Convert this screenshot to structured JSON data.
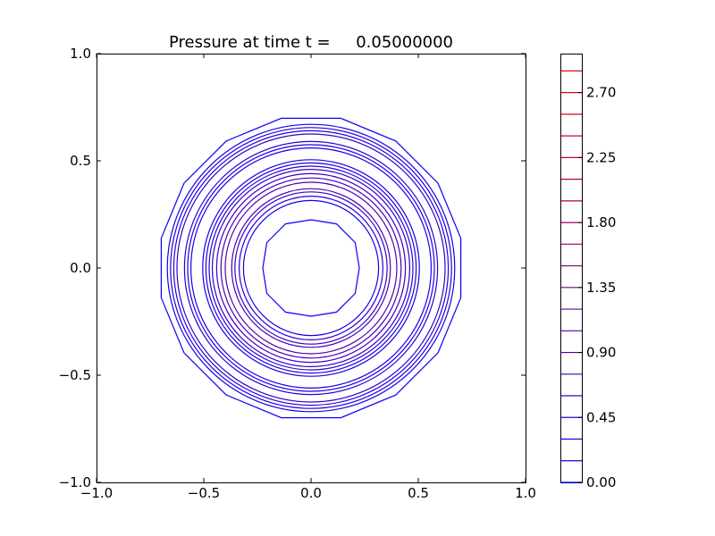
{
  "chart_data": {
    "type": "contour",
    "title": "Pressure at time t =     0.05000000",
    "xlabel": "",
    "ylabel": "",
    "xlim": [
      -1.0,
      1.0
    ],
    "ylim": [
      -1.0,
      1.0
    ],
    "x_ticks": [
      "−1.0",
      "−0.5",
      "0.0",
      "0.5",
      "1.0"
    ],
    "y_ticks": [
      "−1.0",
      "−0.5",
      "0.0",
      "0.5",
      "1.0"
    ],
    "grid": false,
    "contour_levels": [
      0.0,
      0.15,
      0.3,
      0.45,
      0.6,
      0.75,
      0.9,
      1.05,
      1.2,
      1.35,
      1.5,
      1.65,
      1.8,
      1.95,
      2.1,
      2.25,
      2.4,
      2.55,
      2.7,
      2.85
    ],
    "colorbar": {
      "min": 0.0,
      "max": 2.97,
      "tick_values": [
        0.0,
        0.45,
        0.9,
        1.35,
        1.8,
        2.25,
        2.7
      ],
      "tick_labels": [
        "0.00",
        "0.45",
        "0.90",
        "1.35",
        "1.80",
        "2.25",
        "2.70"
      ],
      "color_low": "#0000ff",
      "color_high": "#ff0000"
    },
    "contours": [
      {
        "level": 0.15,
        "radius": 0.72,
        "shape": "octagon",
        "color": "#0a00f5"
      },
      {
        "level": 0.3,
        "radius": 0.67,
        "shape": "circle",
        "color": "#1400eb"
      },
      {
        "level": 0.45,
        "radius": 0.655,
        "shape": "circle",
        "color": "#1e00e1"
      },
      {
        "level": 0.6,
        "radius": 0.64,
        "shape": "circle",
        "color": "#2800d7"
      },
      {
        "level": 0.75,
        "radius": 0.625,
        "shape": "circle",
        "color": "#3300cc"
      },
      {
        "level": 0.6,
        "radius": 0.59,
        "shape": "circle",
        "color": "#2800d7"
      },
      {
        "level": 0.45,
        "radius": 0.575,
        "shape": "circle",
        "color": "#1e00e1"
      },
      {
        "level": 0.3,
        "radius": 0.56,
        "shape": "circle",
        "color": "#1400eb"
      },
      {
        "level": 0.3,
        "radius": 0.505,
        "shape": "circle",
        "color": "#1400eb"
      },
      {
        "level": 0.45,
        "radius": 0.49,
        "shape": "circle",
        "color": "#1e00e1"
      },
      {
        "level": 0.6,
        "radius": 0.475,
        "shape": "circle",
        "color": "#2800d7"
      },
      {
        "level": 0.75,
        "radius": 0.46,
        "shape": "circle",
        "color": "#3300cc"
      },
      {
        "level": 0.9,
        "radius": 0.44,
        "shape": "circle",
        "color": "#3d00c2"
      },
      {
        "level": 1.05,
        "radius": 0.42,
        "shape": "circle",
        "color": "#4700b8"
      },
      {
        "level": 1.2,
        "radius": 0.4,
        "shape": "circle",
        "color": "#5100ae"
      },
      {
        "level": 1.05,
        "radius": 0.37,
        "shape": "circle",
        "color": "#4700b8"
      },
      {
        "level": 0.9,
        "radius": 0.355,
        "shape": "circle",
        "color": "#3d00c2"
      },
      {
        "level": 0.6,
        "radius": 0.335,
        "shape": "circle",
        "color": "#2800d7"
      },
      {
        "level": 0.3,
        "radius": 0.315,
        "shape": "circle",
        "color": "#1400eb"
      },
      {
        "level": 0.15,
        "radius": 0.25,
        "shape": "diamond",
        "color": "#0a00f5"
      }
    ]
  }
}
